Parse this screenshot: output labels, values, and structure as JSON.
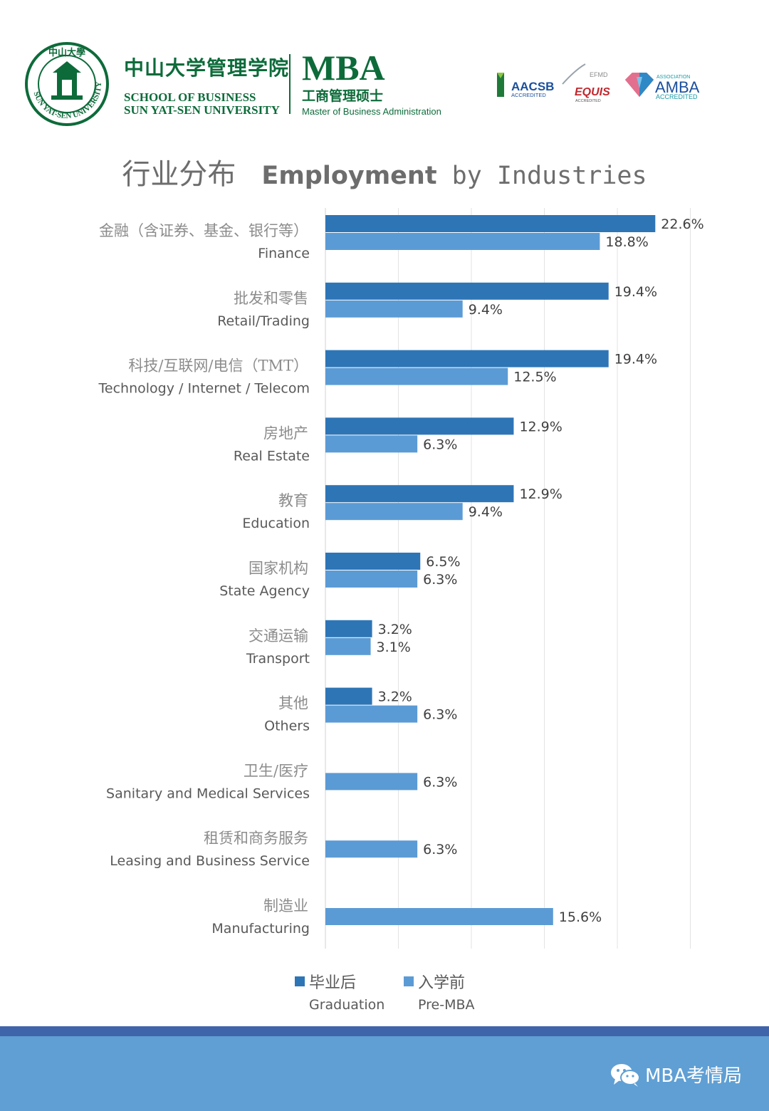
{
  "header": {
    "school_cn": "中山大学管理学院",
    "school_en_1": "SCHOOL OF BUSINESS",
    "school_en_2": "SUN YAT-SEN UNIVERSITY",
    "seal_text": "SUN YAT-SEN UNIVERSITY",
    "seal_cn": "中山大學",
    "mba_big": "MBA",
    "mba_cn": "工商管理硕士",
    "mba_en": "Master of Business Administration",
    "accreditations": {
      "aacsb": "AACSB",
      "aacsb_sub": "ACCREDITED",
      "equis_top": "EFMD",
      "equis": "EQUIS",
      "equis_sub": "ACCREDITED",
      "amba_top": "ASSOCIATION",
      "amba": "AMBA",
      "amba_sub": "ACCREDITED"
    }
  },
  "title": {
    "cn": "行业分布",
    "en_bold": "Employment",
    "en_rest": " by Industries"
  },
  "colors": {
    "graduation": "#2e75b6",
    "pre_mba": "#5b9bd5",
    "brand_green": "#0d6b3a",
    "footer": "#5f9fd4",
    "footer_band": "#3f64aa"
  },
  "chart_data": {
    "type": "bar",
    "orientation": "horizontal",
    "title": "行业分布 Employment by Industries",
    "categories": [
      {
        "cn": "金融（含证券、基金、银行等）",
        "en": "Finance"
      },
      {
        "cn": "批发和零售",
        "en": "Retail/Trading"
      },
      {
        "cn": "科技/互联网/电信（TMT）",
        "en": "Technology / Internet / Telecom"
      },
      {
        "cn": "房地产",
        "en": "Real Estate"
      },
      {
        "cn": "教育",
        "en": "Education"
      },
      {
        "cn": "国家机构",
        "en": "State Agency"
      },
      {
        "cn": "交通运输",
        "en": "Transport"
      },
      {
        "cn": "其他",
        "en": "Others"
      },
      {
        "cn": "卫生/医疗",
        "en": "Sanitary and Medical Services"
      },
      {
        "cn": "租赁和商务服务",
        "en": "Leasing and Business Service"
      },
      {
        "cn": "制造业",
        "en": "Manufacturing"
      }
    ],
    "series": [
      {
        "name": "毕业后 Graduation",
        "name_cn": "毕业后",
        "name_en": "Graduation",
        "values": [
          22.6,
          19.4,
          19.4,
          12.9,
          12.9,
          6.5,
          3.2,
          3.2,
          null,
          null,
          null
        ],
        "labels": [
          "22.6%",
          "19.4%",
          "19.4%",
          "12.9%",
          "12.9%",
          "6.5%",
          "3.2%",
          "3.2%",
          null,
          null,
          null
        ]
      },
      {
        "name": "入学前 Pre-MBA",
        "name_cn": "入学前",
        "name_en": "Pre-MBA",
        "values": [
          18.8,
          9.4,
          12.5,
          6.3,
          9.4,
          6.3,
          3.1,
          6.3,
          6.3,
          6.3,
          15.6
        ],
        "labels": [
          "18.8%",
          "9.4%",
          "12.5%",
          "6.3%",
          "9.4%",
          "6.3%",
          "3.1%",
          "6.3%",
          "6.3%",
          "6.3%",
          "15.6%"
        ]
      }
    ],
    "xlim": [
      0,
      25
    ],
    "grid": true,
    "legend": "bottom"
  },
  "footer": {
    "wechat": "MBA考情局"
  }
}
